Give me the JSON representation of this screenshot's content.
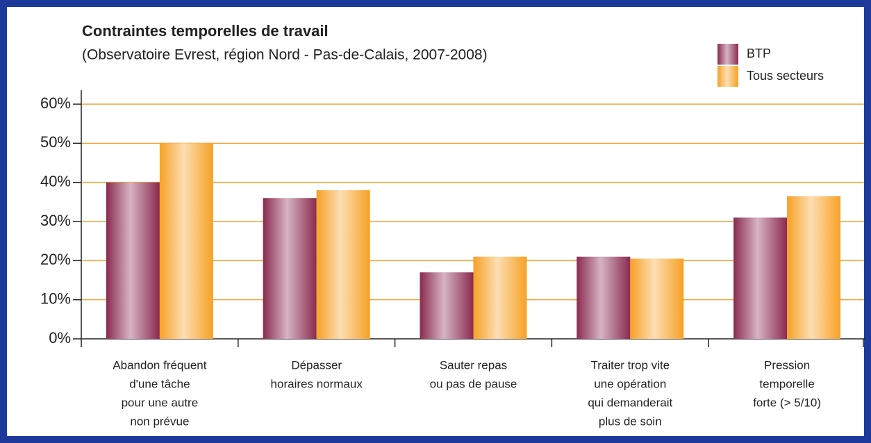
{
  "chart_data": {
    "type": "bar",
    "title": "Contraintes temporelles de travail",
    "subtitle": "(Observatoire Evrest, région Nord - Pas-de-Calais, 2007-2008)",
    "categories": [
      [
        "Abandon fréquent",
        "d'une tâche",
        "pour une autre",
        "non prévue"
      ],
      [
        "Dépasser",
        "horaires normaux"
      ],
      [
        "Sauter repas",
        "ou pas de pause"
      ],
      [
        "Traiter trop vite",
        "une opération",
        "qui demanderait",
        "plus de soin"
      ],
      [
        "Pression",
        "temporelle",
        "forte (> 5/10)"
      ]
    ],
    "series": [
      {
        "name": "BTP",
        "color": "#8a2a50",
        "values": [
          40,
          36,
          17,
          21,
          31
        ]
      },
      {
        "name": "Tous secteurs",
        "color": "#f7a125",
        "values": [
          50,
          38,
          21,
          20.5,
          36.5
        ]
      }
    ],
    "ylim": [
      0,
      60
    ],
    "yticks": [
      {
        "value": 0,
        "label": "0%"
      },
      {
        "value": 10,
        "label": "10%"
      },
      {
        "value": 20,
        "label": "20%"
      },
      {
        "value": 30,
        "label": "30%"
      },
      {
        "value": 40,
        "label": "40%"
      },
      {
        "value": 50,
        "label": "50%"
      },
      {
        "value": 60,
        "label": "60%"
      }
    ],
    "grid": true,
    "grid_color": "#f0a436",
    "legend": "top-right"
  }
}
